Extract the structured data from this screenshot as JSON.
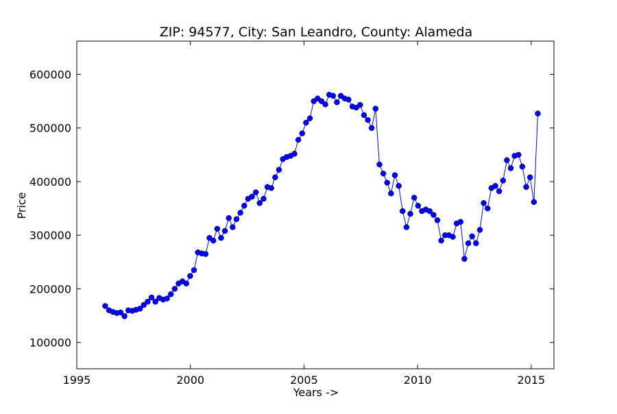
{
  "chart_data": {
    "type": "line",
    "title": "ZIP: 94577, City: San Leandro, County: Alameda",
    "x_label": "Years ->",
    "y_label": "Price",
    "xlim": [
      1995,
      2016
    ],
    "xticks": [
      1995,
      2000,
      2005,
      2010,
      2015
    ],
    "ylim": [
      51000,
      662000
    ],
    "yticks": [
      100000,
      200000,
      300000,
      400000,
      500000,
      600000
    ],
    "grid": false,
    "series": [
      {
        "name": "Price",
        "color": "#0000ff",
        "x": [
          1996.25,
          1996.42,
          1996.59,
          1996.76,
          1996.93,
          1997.1,
          1997.27,
          1997.44,
          1997.61,
          1997.78,
          1997.95,
          1998.12,
          1998.29,
          1998.46,
          1998.63,
          1998.8,
          1998.97,
          1999.14,
          1999.31,
          1999.48,
          1999.65,
          1999.82,
          1999.99,
          2000.16,
          2000.33,
          2000.5,
          2000.67,
          2000.84,
          2001.01,
          2001.18,
          2001.35,
          2001.52,
          2001.69,
          2001.86,
          2002.03,
          2002.2,
          2002.37,
          2002.54,
          2002.71,
          2002.88,
          2003.05,
          2003.22,
          2003.39,
          2003.56,
          2003.73,
          2003.9,
          2004.07,
          2004.24,
          2004.41,
          2004.58,
          2004.75,
          2004.92,
          2005.09,
          2005.26,
          2005.43,
          2005.6,
          2005.77,
          2005.94,
          2006.11,
          2006.28,
          2006.45,
          2006.62,
          2006.79,
          2006.96,
          2007.13,
          2007.3,
          2007.47,
          2007.64,
          2007.81,
          2007.98,
          2008.15,
          2008.32,
          2008.49,
          2008.66,
          2008.83,
          2009.0,
          2009.17,
          2009.34,
          2009.51,
          2009.68,
          2009.85,
          2010.02,
          2010.19,
          2010.36,
          2010.53,
          2010.7,
          2010.87,
          2011.04,
          2011.21,
          2011.38,
          2011.55,
          2011.72,
          2011.89,
          2012.06,
          2012.23,
          2012.4,
          2012.57,
          2012.74,
          2012.91,
          2013.08,
          2013.25,
          2013.42,
          2013.59,
          2013.76,
          2013.93,
          2014.1,
          2014.27,
          2014.44,
          2014.61,
          2014.78,
          2014.95,
          2015.12,
          2015.29
        ],
        "values": [
          168000,
          160000,
          157000,
          155000,
          156000,
          149000,
          160000,
          159000,
          161000,
          163000,
          170000,
          176000,
          184000,
          176000,
          183000,
          180000,
          182000,
          190000,
          200000,
          210000,
          214000,
          210000,
          224000,
          235000,
          268000,
          266000,
          265000,
          295000,
          290000,
          312000,
          295000,
          308000,
          332000,
          315000,
          330000,
          342000,
          355000,
          368000,
          372000,
          380000,
          360000,
          368000,
          390000,
          388000,
          408000,
          422000,
          442000,
          446000,
          448000,
          452000,
          478000,
          490000,
          510000,
          518000,
          550000,
          555000,
          550000,
          544000,
          562000,
          560000,
          548000,
          560000,
          555000,
          553000,
          540000,
          538000,
          543000,
          524000,
          515000,
          500000,
          536000,
          432000,
          415000,
          398000,
          378000,
          412000,
          392000,
          345000,
          315000,
          340000,
          370000,
          355000,
          345000,
          348000,
          345000,
          338000,
          328000,
          290000,
          300000,
          300000,
          297000,
          322000,
          325000,
          256000,
          285000,
          298000,
          285000,
          310000,
          360000,
          350000,
          388000,
          392000,
          382000,
          402000,
          440000,
          425000,
          448000,
          450000,
          428000,
          390000,
          408000,
          362000,
          527000
        ]
      }
    ]
  }
}
